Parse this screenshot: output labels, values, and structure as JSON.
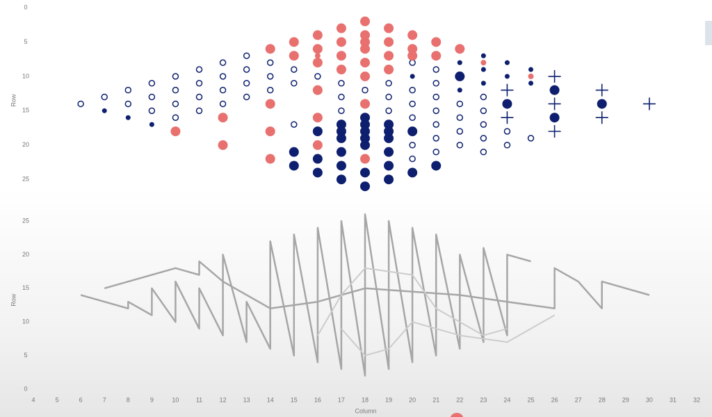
{
  "chart_data": [
    {
      "type": "scatter",
      "y_label": "Row",
      "xlim": [
        4,
        32
      ],
      "ylim": [
        0,
        27
      ],
      "y_reversed": true,
      "yticks": [
        0,
        5,
        10,
        15,
        20,
        25
      ],
      "series": [
        {
          "marker": "hollow",
          "color": "#0d1f6e",
          "size": 4,
          "x": [
            6,
            7,
            8,
            8,
            9,
            9,
            9,
            10,
            10,
            10,
            10,
            11,
            11,
            11,
            11,
            12,
            12,
            12,
            12,
            13,
            13,
            13,
            13,
            14,
            14,
            14,
            15,
            15,
            15,
            16,
            17,
            17,
            17,
            18,
            19,
            19,
            19,
            20,
            20,
            20,
            20,
            20,
            20,
            21,
            21,
            21,
            21,
            21,
            21,
            21,
            22,
            22,
            22,
            22,
            23,
            23,
            23,
            23,
            23,
            24,
            24,
            25
          ],
          "y": [
            14,
            13,
            12,
            14,
            11,
            13,
            15,
            10,
            12,
            14,
            16,
            9,
            11,
            13,
            15,
            8,
            10,
            12,
            14,
            7,
            9,
            11,
            13,
            8,
            10,
            12,
            9,
            11,
            17,
            10,
            11,
            13,
            15,
            12,
            11,
            13,
            15,
            8,
            12,
            14,
            16,
            20,
            22,
            9,
            11,
            13,
            15,
            17,
            19,
            21,
            14,
            16,
            18,
            20,
            13,
            15,
            17,
            19,
            21,
            18,
            20,
            19
          ]
        },
        {
          "marker": "dot",
          "color": "#0d1f6e",
          "size": 3.5,
          "x": [
            7,
            8,
            9,
            20,
            22,
            22,
            23,
            23,
            23,
            24,
            24,
            25,
            25
          ],
          "y": [
            15,
            16,
            17,
            10,
            8,
            12,
            7,
            9,
            11,
            8,
            10,
            9,
            11
          ]
        },
        {
          "marker": "dot",
          "color": "#0d1f6e",
          "size": 7,
          "x": [
            15,
            15,
            16,
            16,
            16,
            17,
            17,
            17,
            17,
            17,
            17,
            18,
            18,
            18,
            18,
            18,
            18,
            18,
            19,
            19,
            19,
            19,
            19,
            19,
            20,
            20,
            21,
            22,
            24,
            26,
            26,
            28
          ],
          "y": [
            21,
            23,
            18,
            22,
            24,
            17,
            18,
            19,
            21,
            23,
            25,
            16,
            17,
            18,
            19,
            20,
            24,
            26,
            17,
            18,
            19,
            21,
            23,
            25,
            18,
            24,
            23,
            10,
            14,
            12,
            16,
            14
          ]
        },
        {
          "marker": "dot",
          "color": "#e8706f",
          "size": 7,
          "x": [
            10,
            12,
            12,
            14,
            14,
            14,
            14,
            15,
            15,
            16,
            16,
            16,
            16,
            16,
            16,
            17,
            17,
            17,
            17,
            18,
            18,
            18,
            18,
            18,
            18,
            18,
            18,
            19,
            19,
            19,
            19,
            20,
            20,
            20,
            21,
            21,
            22
          ],
          "y": [
            18,
            16,
            20,
            6,
            14,
            18,
            22,
            5,
            7,
            4,
            6,
            8,
            12,
            16,
            20,
            3,
            5,
            7,
            9,
            2,
            4,
            6,
            8,
            10,
            14,
            22,
            5,
            3,
            5,
            7,
            9,
            4,
            6,
            7,
            5,
            7,
            6
          ]
        },
        {
          "marker": "dot",
          "color": "#e8706f",
          "size": 4,
          "x": [
            16,
            18,
            23,
            25
          ],
          "y": [
            7,
            5,
            8,
            10
          ]
        },
        {
          "marker": "plus",
          "color": "#0d1f6e",
          "size": 9,
          "x": [
            24,
            24,
            26,
            26,
            26,
            28,
            28,
            30
          ],
          "y": [
            12,
            16,
            10,
            14,
            18,
            12,
            16,
            14
          ]
        }
      ]
    },
    {
      "type": "line",
      "x_label": "Column",
      "y_label": "Row",
      "xlim": [
        4,
        32
      ],
      "ylim": [
        0,
        26.5
      ],
      "xticks": [
        4,
        5,
        6,
        7,
        8,
        9,
        10,
        11,
        12,
        13,
        14,
        15,
        16,
        17,
        18,
        19,
        20,
        21,
        22,
        23,
        24,
        25,
        26,
        27,
        28,
        29,
        30,
        31,
        32
      ],
      "yticks": [
        0,
        5,
        10,
        15,
        20,
        25
      ],
      "series": [
        {
          "color": "#a6a6a6",
          "width": 2.5,
          "x": [
            6,
            8,
            8,
            9,
            9,
            10,
            10,
            11,
            11,
            12,
            12,
            13,
            13,
            14,
            14,
            15,
            15,
            16,
            16,
            17,
            17,
            18,
            18,
            19,
            19,
            20,
            20,
            21,
            21,
            22,
            22,
            23,
            23,
            24,
            24,
            25
          ],
          "y": [
            14,
            12,
            13,
            11,
            15,
            10,
            16,
            9,
            15,
            8,
            20,
            7,
            13,
            6,
            22,
            5,
            23,
            4,
            24,
            3,
            25,
            2,
            26,
            3,
            25,
            4,
            24,
            5,
            23,
            6,
            20,
            7,
            21,
            8,
            20,
            19
          ]
        },
        {
          "color": "#a6a6a6",
          "width": 2.5,
          "x": [
            7,
            10,
            11,
            11,
            12,
            14,
            16,
            18,
            22,
            24,
            26,
            26,
            27,
            28,
            28,
            29,
            30
          ],
          "y": [
            15,
            18,
            17,
            19,
            16,
            12,
            13,
            15,
            14,
            13,
            12,
            18,
            16,
            12,
            16,
            15,
            14
          ]
        },
        {
          "color": "#cccccc",
          "width": 2,
          "x": [
            16,
            17,
            18,
            20,
            21,
            22,
            23,
            24
          ],
          "y": [
            8,
            14,
            18,
            17,
            12,
            10,
            8,
            9
          ]
        },
        {
          "color": "#cccccc",
          "width": 2,
          "x": [
            17,
            18,
            19,
            20,
            22,
            24,
            25,
            26
          ],
          "y": [
            9,
            5,
            6,
            10,
            8,
            7,
            9,
            11
          ]
        }
      ]
    }
  ]
}
